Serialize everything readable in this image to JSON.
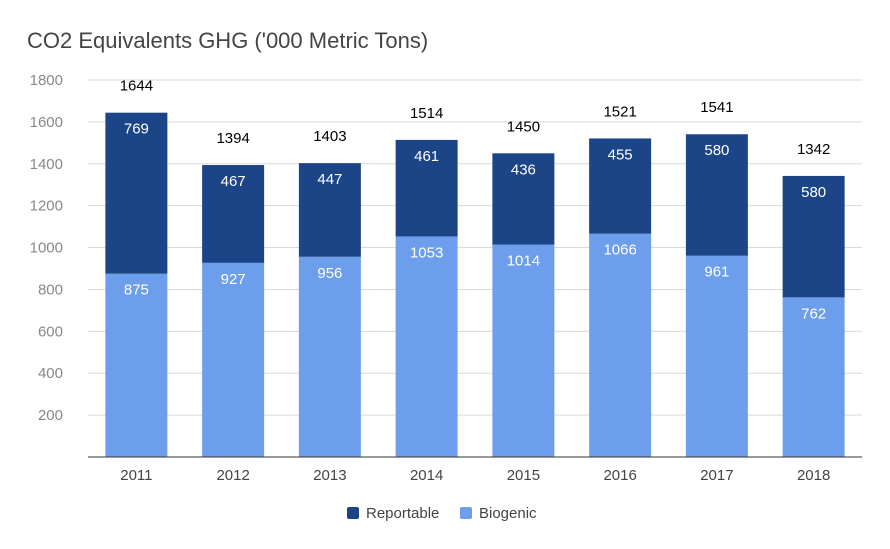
{
  "chart_data": {
    "type": "bar",
    "stacked": true,
    "title": "CO2 Equivalents GHG ('000 Metric Tons)",
    "categories": [
      "2011",
      "2012",
      "2013",
      "2014",
      "2015",
      "2016",
      "2017",
      "2018"
    ],
    "series": [
      {
        "name": "Biogenic",
        "color": "#6d9eeb",
        "values": [
          875,
          927,
          956,
          1053,
          1014,
          1066,
          961,
          762
        ]
      },
      {
        "name": "Reportable",
        "color": "#1c4587",
        "values": [
          769,
          467,
          447,
          461,
          436,
          455,
          580,
          580
        ]
      }
    ],
    "totals": [
      1644,
      1394,
      1403,
      1514,
      1450,
      1521,
      1541,
      1342
    ],
    "ylim": [
      0,
      1800
    ],
    "yticks": [
      200,
      400,
      600,
      800,
      1000,
      1200,
      1400,
      1600,
      1800
    ],
    "grid": true,
    "legend": {
      "position": "bottom",
      "items": [
        {
          "name": "Reportable",
          "color": "#1c4587"
        },
        {
          "name": "Biogenic",
          "color": "#6d9eeb"
        }
      ]
    }
  }
}
